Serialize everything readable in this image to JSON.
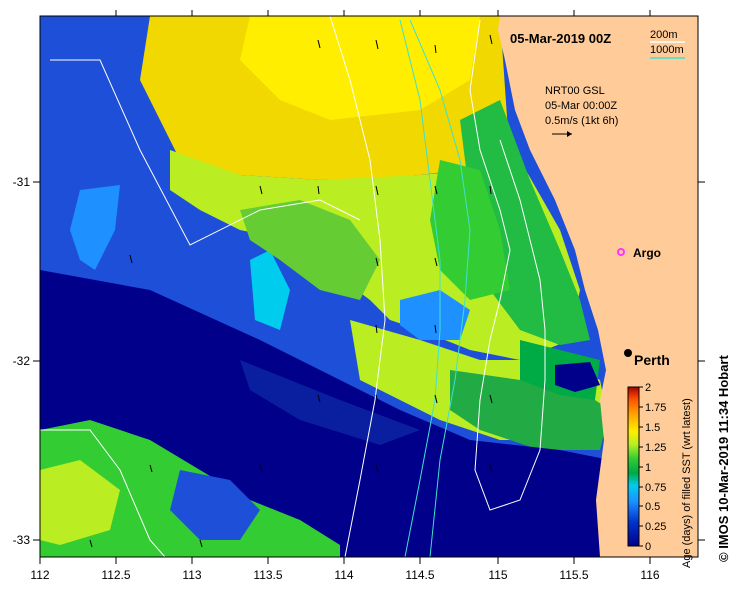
{
  "map": {
    "title": "05-Mar-2019 00Z",
    "isobath_legend": [
      "200m",
      "1000m"
    ],
    "isobath_colors": [
      "#ffffff",
      "#40e0d0"
    ],
    "current_legend": {
      "lines": [
        "NRT00 GSL",
        "05-Mar 00:00Z",
        "0.5m/s (1kt 6h)"
      ]
    },
    "places": {
      "argo": "Argo",
      "perth": "Perth"
    },
    "land_color": "#ffcc99",
    "x_ticks": [
      "112",
      "112.5",
      "113",
      "113.5",
      "114",
      "114.5",
      "115",
      "115.5",
      "116"
    ],
    "y_ticks": [
      "-31",
      "-32",
      "-33"
    ]
  },
  "colorbar": {
    "label": "Age (days) of filled SST (wrt latest)",
    "ticks": [
      "0",
      "0.25",
      "0.5",
      "0.75",
      "1",
      "1.25",
      "1.5",
      "1.75",
      "2"
    ],
    "colors": [
      "#00008b",
      "#0044dd",
      "#1e90ff",
      "#00ccee",
      "#00aa44",
      "#33cc33",
      "#bbee22",
      "#ffee00",
      "#ffaa00",
      "#ff5500",
      "#aa0000"
    ]
  },
  "credit": "© IMOS 10-Mar-2019 11:34 Hobart"
}
